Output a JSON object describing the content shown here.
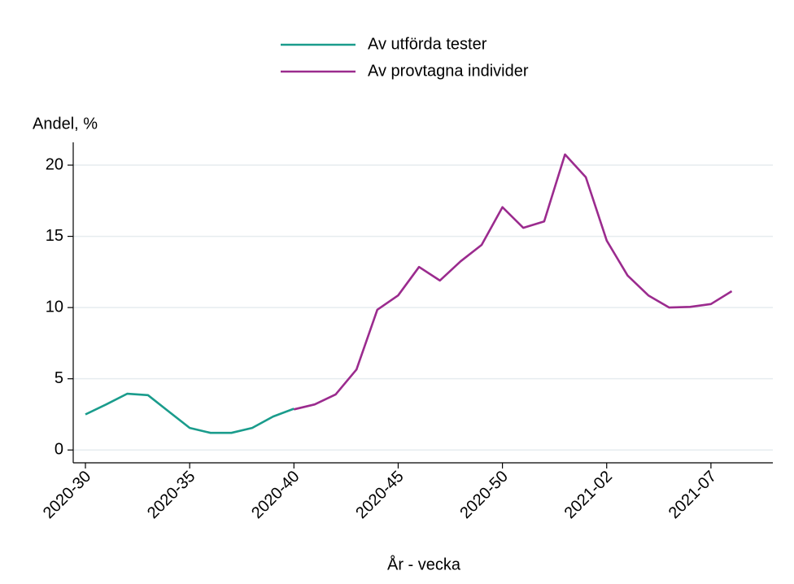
{
  "chart_data": {
    "type": "line",
    "y_label": "Andel, %",
    "x_label": "År - vecka",
    "categories": [
      "2020-30",
      null,
      null,
      null,
      null,
      "2020-35",
      null,
      null,
      null,
      null,
      "2020-40",
      null,
      null,
      null,
      null,
      "2020-45",
      null,
      null,
      null,
      null,
      "2020-50",
      null,
      null,
      null,
      null,
      "2021-02",
      null,
      null,
      null,
      null,
      "2021-07",
      null
    ],
    "series": [
      {
        "name": "Av utförda tester",
        "color": "#1a9c8c",
        "values": [
          2.5,
          3.2,
          3.95,
          3.85,
          2.7,
          1.55,
          1.2,
          1.2,
          1.55,
          2.35,
          2.9,
          null,
          null,
          null,
          null,
          null,
          null,
          null,
          null,
          null,
          null,
          null,
          null,
          null,
          null,
          null,
          null,
          null,
          null,
          null,
          null,
          null
        ]
      },
      {
        "name": "Av provtagna individer",
        "color": "#9b2b8e",
        "values": [
          null,
          null,
          null,
          null,
          null,
          null,
          null,
          null,
          null,
          null,
          2.85,
          3.2,
          3.9,
          5.65,
          9.85,
          10.85,
          12.85,
          11.9,
          13.25,
          14.4,
          17.05,
          15.6,
          16.05,
          20.75,
          19.15,
          14.7,
          12.25,
          10.85,
          10.0,
          10.05,
          10.25,
          11.15
        ]
      }
    ],
    "ylim": [
      -0.9,
      21.6
    ],
    "yticks": [
      0,
      5,
      10,
      15,
      20
    ],
    "grid": true
  }
}
